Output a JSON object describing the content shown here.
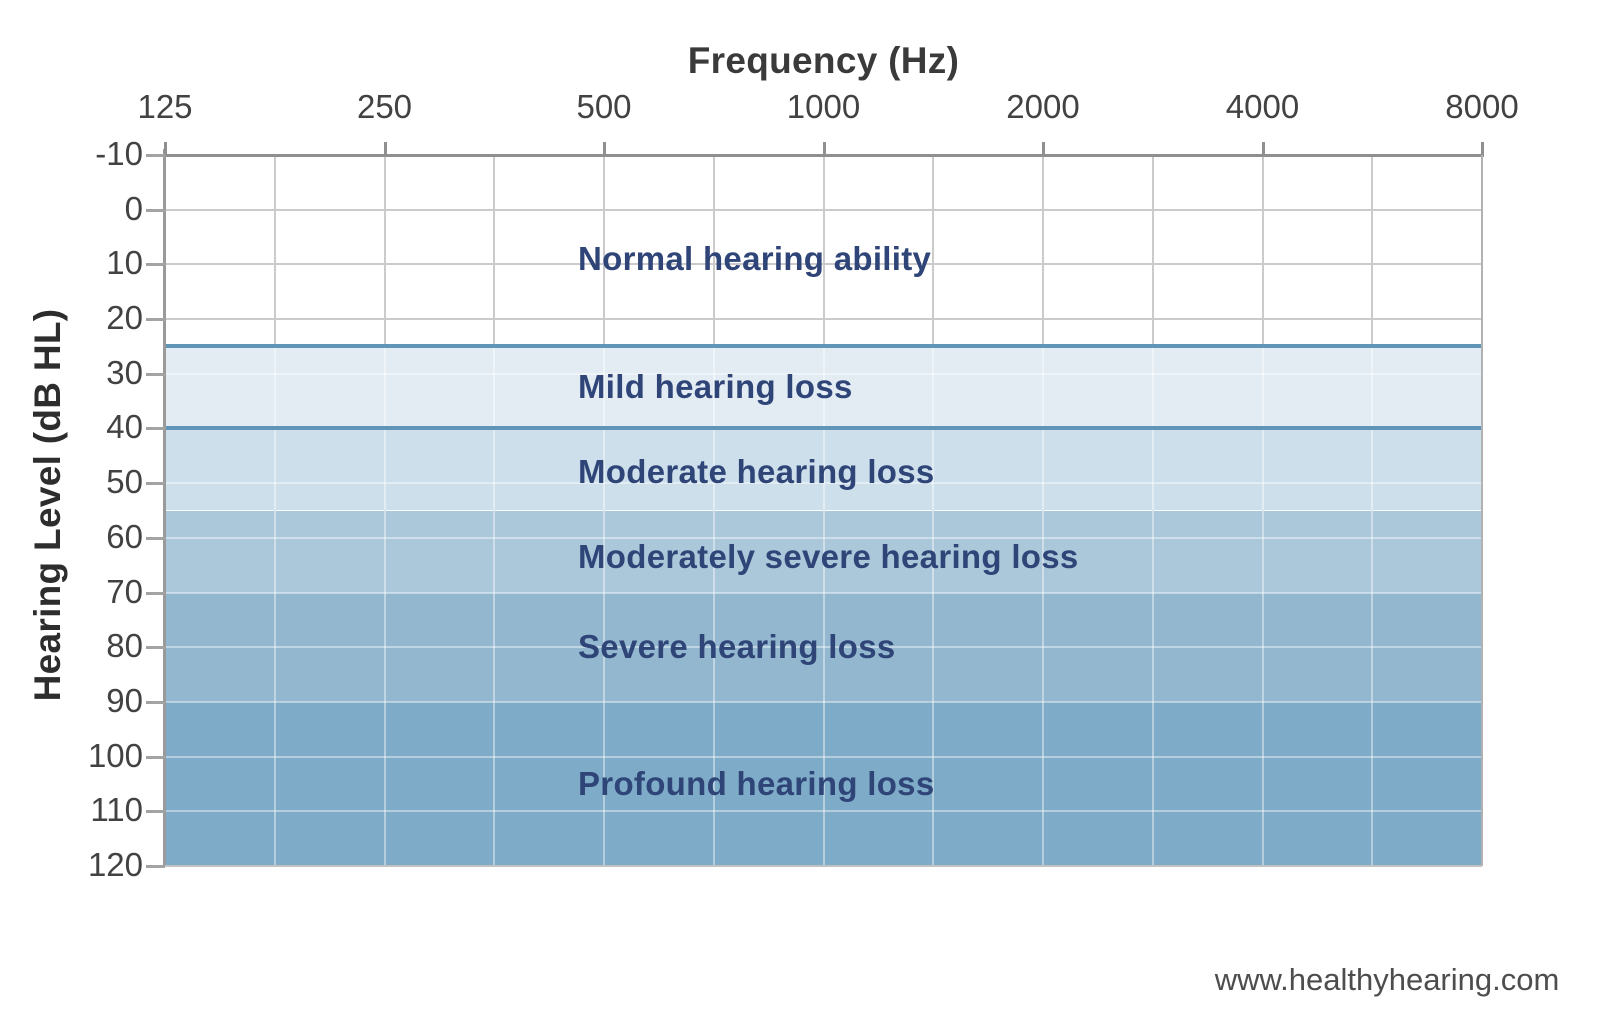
{
  "chart_data": {
    "type": "area",
    "chart_kind": "audiogram-hearing-loss-severity-bands",
    "title": "Frequency (Hz)",
    "xlabel": "Frequency (Hz)",
    "ylabel": "Hearing Level (dB HL)",
    "x_ticks": [
      "125",
      "250",
      "500",
      "1000",
      "2000",
      "4000",
      "8000"
    ],
    "x_scale": "log-octaves-equally-spaced",
    "x_minor_gridlines_at_octave_midpoints": true,
    "y_ticks": [
      "-10",
      "0",
      "10",
      "20",
      "30",
      "40",
      "50",
      "60",
      "70",
      "80",
      "90",
      "100",
      "110",
      "120"
    ],
    "ylim": [
      -10,
      120
    ],
    "y_direction": "dB increases downward",
    "grid": "on",
    "legend_position": "none",
    "bands": [
      {
        "label": "Normal hearing ability",
        "from_db": -10,
        "to_db": 25,
        "color": "#ffffff",
        "label_db": 9,
        "top_border": false
      },
      {
        "label": "Mild hearing loss",
        "from_db": 25,
        "to_db": 40,
        "color": "#e3ecf3",
        "label_db": 32.5,
        "top_border": true
      },
      {
        "label": "Moderate hearing loss",
        "from_db": 40,
        "to_db": 55,
        "color": "#cddfeb",
        "label_db": 48,
        "top_border": true
      },
      {
        "label": "Moderately severe hearing loss",
        "from_db": 55,
        "to_db": 70,
        "color": "#abc8da",
        "label_db": 63.5,
        "top_border": false
      },
      {
        "label": "Severe hearing loss",
        "from_db": 70,
        "to_db": 90,
        "color": "#93b7cf",
        "label_db": 80,
        "top_border": false
      },
      {
        "label": "Profound hearing loss",
        "from_db": 90,
        "to_db": 120,
        "color": "#7eabc7",
        "label_db": 105,
        "top_border": false
      }
    ],
    "band_border_color": "#6195b8",
    "band_label_color": "#2f4578",
    "axis_text_color": "#424242",
    "watermark": "www.healthyhearing.com"
  }
}
